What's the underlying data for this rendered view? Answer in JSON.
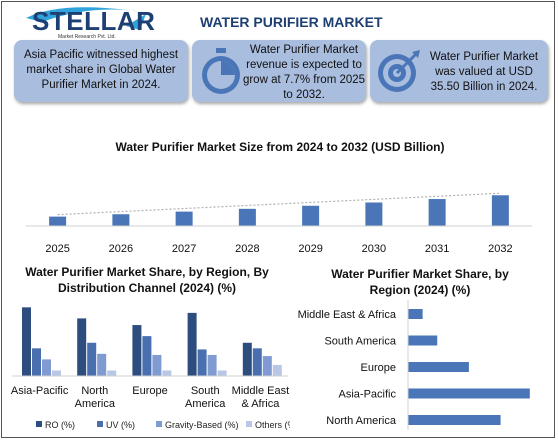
{
  "logo": {
    "name": "STELLAR",
    "tagline": "Market Research Pvt. Ltd."
  },
  "page_title": "WATER PURIFIER MARKET",
  "cards": [
    {
      "text": "Asia Pacific witnessed highest market share in Global Water Purifier Market in 2024.",
      "icon": ""
    },
    {
      "text": "Water Purifier Market revenue is expected to grow at 7.7% from 2025 to 2032.",
      "icon": "stopwatch-icon"
    },
    {
      "text": "Water Purifier Market was valued at USD 35.50 Billion in 2024.",
      "icon": "target-icon"
    }
  ],
  "colors": {
    "primary_bar": "#4a76b8",
    "card_bg": "#a9bddf",
    "title": "#1e3f73",
    "ro": "#2e4d7f",
    "uv": "#4a6fae",
    "gravity": "#7f9bd1",
    "others": "#b9c7e6"
  },
  "chart_data": [
    {
      "type": "bar",
      "title": "Water Purifier Market Size from 2024 to 2032 (USD Billion)",
      "categories": [
        "2025",
        "2026",
        "2027",
        "2028",
        "2029",
        "2030",
        "2031",
        "2032"
      ],
      "values": [
        38.2,
        41.1,
        44.3,
        47.7,
        51.4,
        55.4,
        59.6,
        64.2
      ],
      "ylim": [
        0,
        70
      ],
      "trendline": true,
      "xlabel": "",
      "ylabel": ""
    },
    {
      "type": "bar",
      "title": "Water Purifier Market Share, by Region, By Distribution Channel (2024) (%)",
      "categories": [
        "Asia-Pacific",
        "North America",
        "Europe",
        "South America",
        "Middle East & Africa"
      ],
      "series": [
        {
          "name": "RO (%)",
          "values": [
            62,
            52,
            46,
            57,
            30
          ]
        },
        {
          "name": "UV (%)",
          "values": [
            25,
            30,
            36,
            24,
            25
          ]
        },
        {
          "name": "Gravity-Based (%)",
          "values": [
            15,
            20,
            19,
            19,
            18
          ]
        },
        {
          "name": "Others (%)",
          "values": [
            5,
            5,
            5,
            5,
            10
          ]
        }
      ],
      "ylim": [
        0,
        65
      ],
      "legend": "bottom"
    },
    {
      "type": "bar",
      "orientation": "horizontal",
      "title": "Water Purifier Market Share, by Region (2024) (%)",
      "categories": [
        "Middle East & Africa",
        "South America",
        "Europe",
        "Asia-Pacific",
        "North America"
      ],
      "values": [
        6,
        12,
        25,
        50,
        38
      ],
      "xlim": [
        0,
        55
      ]
    }
  ]
}
